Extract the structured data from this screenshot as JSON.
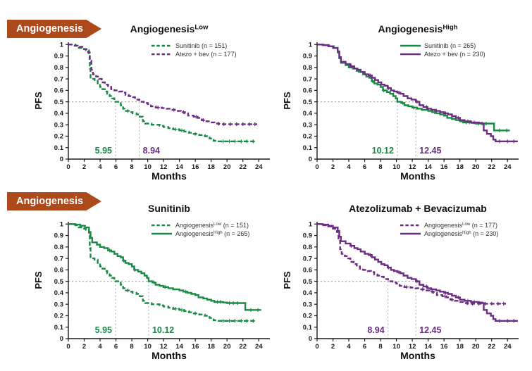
{
  "page": {
    "background": "#ffffff"
  },
  "row_labels": [
    {
      "text": "Angiogenesis"
    },
    {
      "text": "Angiogenesis"
    }
  ],
  "colors": {
    "green": "#178a43",
    "purple": "#6b2d82",
    "arrow_bg": "#ad4a1c",
    "arrow_text": "#ffffff",
    "axis": "#1a1a1a",
    "tick_text": "#1a1a1a",
    "legend_text": "#333333",
    "ref_line": "#9a9a9a"
  },
  "chart_data": {
    "type": "line",
    "subtype": "kaplan-meier-step",
    "xlabel": "Months",
    "ylabel": "PFS",
    "xlim": [
      0,
      25.4
    ],
    "ylim": [
      0,
      1.02
    ],
    "xticks": [
      0,
      2,
      4,
      6,
      8,
      10,
      12,
      14,
      16,
      18,
      20,
      22,
      24
    ],
    "yticks": [
      {
        "v": 1.0,
        "label": "1"
      },
      {
        "v": 0.9,
        "label": "0.9"
      },
      {
        "v": 0.8,
        "label": "0.8"
      },
      {
        "v": 0.7,
        "label": "0.7"
      },
      {
        "v": 0.6,
        "label": "0.6"
      },
      {
        "v": 0.5,
        "label": "0.5"
      },
      {
        "v": 0.4,
        "label": "0.4"
      },
      {
        "v": 0.3,
        "label": "0.3"
      },
      {
        "v": 0.2,
        "label": "0.2"
      },
      {
        "v": 0.1,
        "label": "0.1"
      },
      {
        "v": 0.0,
        "label": "0"
      }
    ],
    "reference_level": 0.5,
    "series_bank": {
      "sunitinib_low": {
        "name": "Sunitinib Angiogenesis-Low",
        "points": [
          [
            0,
            1.0
          ],
          [
            0.9,
            0.99
          ],
          [
            1.2,
            0.97
          ],
          [
            1.8,
            0.96
          ],
          [
            2.2,
            0.95
          ],
          [
            2.6,
            0.9
          ],
          [
            2.7,
            0.79
          ],
          [
            2.8,
            0.7
          ],
          [
            3.3,
            0.69
          ],
          [
            3.7,
            0.66
          ],
          [
            4.0,
            0.63
          ],
          [
            4.3,
            0.61
          ],
          [
            4.6,
            0.59
          ],
          [
            4.9,
            0.57
          ],
          [
            5.2,
            0.55
          ],
          [
            5.5,
            0.53
          ],
          [
            5.8,
            0.51
          ],
          [
            5.95,
            0.5
          ],
          [
            6.3,
            0.49
          ],
          [
            6.6,
            0.47
          ],
          [
            6.9,
            0.44
          ],
          [
            7.1,
            0.42
          ],
          [
            7.6,
            0.41
          ],
          [
            8.1,
            0.4
          ],
          [
            8.6,
            0.39
          ],
          [
            9.0,
            0.37
          ],
          [
            9.4,
            0.33
          ],
          [
            9.7,
            0.31
          ],
          [
            10.5,
            0.3
          ],
          [
            11.5,
            0.29
          ],
          [
            12.0,
            0.28
          ],
          [
            12.6,
            0.27
          ],
          [
            13.2,
            0.26
          ],
          [
            14.0,
            0.25
          ],
          [
            14.6,
            0.24
          ],
          [
            15.2,
            0.23
          ],
          [
            15.8,
            0.22
          ],
          [
            16.5,
            0.21
          ],
          [
            17.2,
            0.2
          ],
          [
            17.8,
            0.18
          ],
          [
            18.3,
            0.16
          ],
          [
            18.8,
            0.155
          ],
          [
            23.6,
            0.155
          ]
        ],
        "censor_x": [
          7.5,
          13.5,
          14.3,
          16.0,
          19.5,
          20.3,
          21.0,
          21.8,
          22.5,
          23.3
        ]
      },
      "atezo_bev_low": {
        "name": "Atezo + bev Angiogenesis-Low",
        "points": [
          [
            0,
            1.0
          ],
          [
            0.8,
            0.99
          ],
          [
            1.4,
            0.98
          ],
          [
            2.0,
            0.96
          ],
          [
            2.5,
            0.93
          ],
          [
            2.7,
            0.86
          ],
          [
            2.9,
            0.78
          ],
          [
            3.1,
            0.74
          ],
          [
            3.5,
            0.72
          ],
          [
            3.9,
            0.7
          ],
          [
            4.2,
            0.67
          ],
          [
            4.6,
            0.65
          ],
          [
            5.0,
            0.63
          ],
          [
            5.4,
            0.61
          ],
          [
            5.8,
            0.6
          ],
          [
            6.4,
            0.59
          ],
          [
            6.8,
            0.58
          ],
          [
            7.2,
            0.56
          ],
          [
            7.6,
            0.55
          ],
          [
            8.0,
            0.54
          ],
          [
            8.4,
            0.52
          ],
          [
            8.94,
            0.5
          ],
          [
            9.5,
            0.49
          ],
          [
            10.0,
            0.48
          ],
          [
            10.4,
            0.46
          ],
          [
            11.0,
            0.45
          ],
          [
            11.8,
            0.445
          ],
          [
            12.4,
            0.44
          ],
          [
            13.0,
            0.43
          ],
          [
            13.6,
            0.42
          ],
          [
            14.2,
            0.41
          ],
          [
            14.7,
            0.4
          ],
          [
            15.1,
            0.38
          ],
          [
            15.8,
            0.37
          ],
          [
            16.3,
            0.36
          ],
          [
            16.8,
            0.34
          ],
          [
            17.4,
            0.33
          ],
          [
            17.9,
            0.32
          ],
          [
            18.4,
            0.31
          ],
          [
            19.0,
            0.305
          ],
          [
            23.8,
            0.305
          ]
        ],
        "censor_x": [
          11.3,
          13.3,
          14.5,
          16.1,
          17.0,
          18.9,
          19.6,
          20.4,
          21.2,
          22.0,
          22.8,
          23.5
        ]
      },
      "sunitinib_high": {
        "name": "Sunitinib Angiogenesis-High",
        "points": [
          [
            0,
            1.0
          ],
          [
            0.8,
            0.995
          ],
          [
            1.5,
            0.985
          ],
          [
            2.1,
            0.97
          ],
          [
            2.6,
            0.93
          ],
          [
            2.8,
            0.88
          ],
          [
            3.0,
            0.84
          ],
          [
            3.6,
            0.82
          ],
          [
            4.0,
            0.8
          ],
          [
            4.5,
            0.79
          ],
          [
            5.0,
            0.77
          ],
          [
            5.4,
            0.76
          ],
          [
            5.8,
            0.74
          ],
          [
            6.2,
            0.72
          ],
          [
            6.6,
            0.71
          ],
          [
            6.9,
            0.68
          ],
          [
            7.2,
            0.66
          ],
          [
            7.6,
            0.65
          ],
          [
            8.0,
            0.63
          ],
          [
            8.3,
            0.6
          ],
          [
            8.8,
            0.585
          ],
          [
            9.2,
            0.57
          ],
          [
            9.6,
            0.55
          ],
          [
            9.9,
            0.53
          ],
          [
            10.12,
            0.5
          ],
          [
            10.6,
            0.49
          ],
          [
            11.0,
            0.47
          ],
          [
            11.5,
            0.46
          ],
          [
            12.0,
            0.45
          ],
          [
            12.6,
            0.44
          ],
          [
            13.2,
            0.43
          ],
          [
            14.0,
            0.42
          ],
          [
            14.5,
            0.41
          ],
          [
            15.0,
            0.4
          ],
          [
            15.5,
            0.39
          ],
          [
            16.0,
            0.38
          ],
          [
            16.4,
            0.36
          ],
          [
            17.0,
            0.35
          ],
          [
            17.5,
            0.34
          ],
          [
            18.0,
            0.33
          ],
          [
            18.4,
            0.32
          ],
          [
            19.5,
            0.315
          ],
          [
            20.0,
            0.31
          ],
          [
            22.3,
            0.25
          ],
          [
            24.3,
            0.25
          ]
        ],
        "censor_x": [
          5.2,
          7.0,
          8.4,
          10.8,
          12.2,
          14.8,
          18.8,
          19.2,
          20.3,
          20.8,
          21.3,
          23.0,
          23.9
        ]
      },
      "atezo_bev_high": {
        "name": "Atezo + bev Angiogenesis-High",
        "points": [
          [
            0,
            1.0
          ],
          [
            0.7,
            0.995
          ],
          [
            1.4,
            0.985
          ],
          [
            2.0,
            0.97
          ],
          [
            2.6,
            0.94
          ],
          [
            2.8,
            0.89
          ],
          [
            3.0,
            0.85
          ],
          [
            3.6,
            0.83
          ],
          [
            4.2,
            0.81
          ],
          [
            4.7,
            0.79
          ],
          [
            5.1,
            0.78
          ],
          [
            5.5,
            0.76
          ],
          [
            6.0,
            0.74
          ],
          [
            6.5,
            0.73
          ],
          [
            6.9,
            0.71
          ],
          [
            7.3,
            0.69
          ],
          [
            7.7,
            0.67
          ],
          [
            8.1,
            0.65
          ],
          [
            8.5,
            0.64
          ],
          [
            8.9,
            0.62
          ],
          [
            9.3,
            0.6
          ],
          [
            9.7,
            0.59
          ],
          [
            10.1,
            0.58
          ],
          [
            10.5,
            0.57
          ],
          [
            10.9,
            0.55
          ],
          [
            11.4,
            0.53
          ],
          [
            11.9,
            0.52
          ],
          [
            12.45,
            0.5
          ],
          [
            12.9,
            0.47
          ],
          [
            13.4,
            0.455
          ],
          [
            13.9,
            0.44
          ],
          [
            14.4,
            0.43
          ],
          [
            15.0,
            0.42
          ],
          [
            15.5,
            0.41
          ],
          [
            16.0,
            0.4
          ],
          [
            16.5,
            0.39
          ],
          [
            17.0,
            0.375
          ],
          [
            17.5,
            0.36
          ],
          [
            18.0,
            0.34
          ],
          [
            18.6,
            0.33
          ],
          [
            19.4,
            0.32
          ],
          [
            20.4,
            0.315
          ],
          [
            20.8,
            0.31
          ],
          [
            21.0,
            0.25
          ],
          [
            21.4,
            0.22
          ],
          [
            21.9,
            0.2
          ],
          [
            22.2,
            0.17
          ],
          [
            22.5,
            0.155
          ],
          [
            25.3,
            0.155
          ]
        ],
        "censor_x": [
          4.3,
          6.7,
          9.0,
          10.3,
          12.6,
          13.8,
          16.2,
          17.8,
          19.0,
          19.8,
          23.0,
          24.0,
          24.8
        ]
      }
    },
    "panels": [
      {
        "title": {
          "text": "Angiogenesis",
          "sup": "Low"
        },
        "legend": [
          {
            "text": "Sunitinib",
            "sup": "",
            "suffix": " (n = 151)",
            "color": "green",
            "dash": true
          },
          {
            "text": "Atezo + bev",
            "sup": "",
            "suffix": " (n = 177)",
            "color": "purple",
            "dash": true
          }
        ],
        "medians": [
          {
            "label": "5.95",
            "x": 5.95,
            "color": "green",
            "side": "left"
          },
          {
            "label": "8.94",
            "x": 8.94,
            "color": "purple",
            "side": "right"
          }
        ],
        "series": [
          {
            "ref": "sunitinib_low",
            "color": "green",
            "dash": true
          },
          {
            "ref": "atezo_bev_low",
            "color": "purple",
            "dash": true
          }
        ]
      },
      {
        "title": {
          "text": "Angiogenesis",
          "sup": "High"
        },
        "legend": [
          {
            "text": "Sunitinib",
            "sup": "",
            "suffix": " (n = 265)",
            "color": "green",
            "dash": false
          },
          {
            "text": "Atezo + bev",
            "sup": "",
            "suffix": " (n = 230)",
            "color": "purple",
            "dash": false
          }
        ],
        "medians": [
          {
            "label": "10.12",
            "x": 10.12,
            "color": "green",
            "side": "left"
          },
          {
            "label": "12.45",
            "x": 12.45,
            "color": "purple",
            "side": "right"
          }
        ],
        "series": [
          {
            "ref": "sunitinib_high",
            "color": "green",
            "dash": false
          },
          {
            "ref": "atezo_bev_high",
            "color": "purple",
            "dash": false
          }
        ]
      },
      {
        "title": {
          "text": "Sunitinib",
          "sup": ""
        },
        "legend": [
          {
            "text": "Angiogenesis",
            "sup": "Low",
            "suffix": " (n = 151)",
            "color": "green",
            "dash": true
          },
          {
            "text": "Angiogenesis",
            "sup": "High",
            "suffix": " (n = 265)",
            "color": "green",
            "dash": false
          }
        ],
        "medians": [
          {
            "label": "5.95",
            "x": 5.95,
            "color": "green",
            "side": "left"
          },
          {
            "label": "10.12",
            "x": 10.12,
            "color": "green",
            "side": "right"
          }
        ],
        "series": [
          {
            "ref": "sunitinib_low",
            "color": "green",
            "dash": true
          },
          {
            "ref": "sunitinib_high",
            "color": "green",
            "dash": false
          }
        ]
      },
      {
        "title": {
          "text": "Atezolizumab + Bevacizumab",
          "sup": ""
        },
        "legend": [
          {
            "text": "Angiogenesis",
            "sup": "Low",
            "suffix": " (n = 177)",
            "color": "purple",
            "dash": true
          },
          {
            "text": "Angiogenesis",
            "sup": "High",
            "suffix": " (n = 230)",
            "color": "purple",
            "dash": false
          }
        ],
        "medians": [
          {
            "label": "8.94",
            "x": 8.94,
            "color": "purple",
            "side": "left"
          },
          {
            "label": "12.45",
            "x": 12.45,
            "color": "purple",
            "side": "right"
          }
        ],
        "series": [
          {
            "ref": "atezo_bev_low",
            "color": "purple",
            "dash": true
          },
          {
            "ref": "atezo_bev_high",
            "color": "purple",
            "dash": false
          }
        ]
      }
    ]
  }
}
